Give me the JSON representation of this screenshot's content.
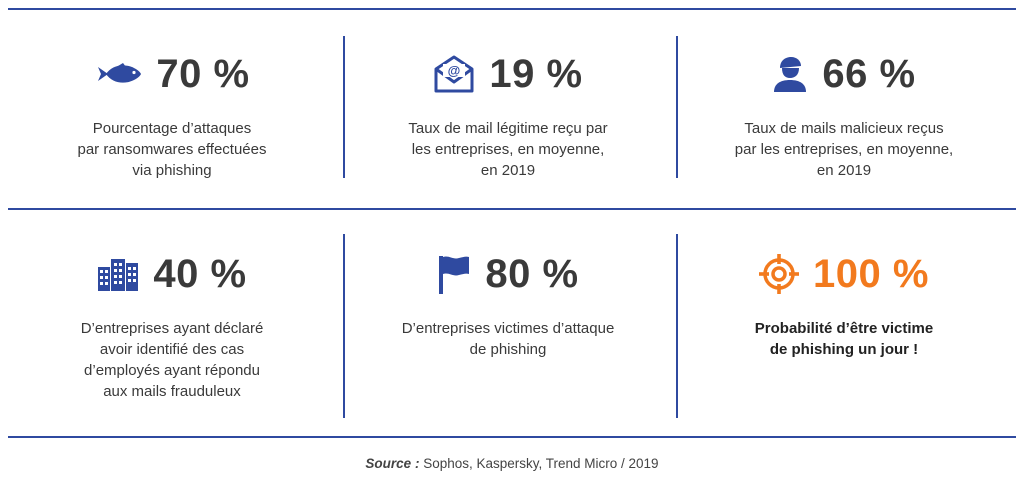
{
  "stats": [
    {
      "value": "70 %",
      "icon": "fish-icon",
      "description": "Pourcentage d’attaques\npar ransomwares effectuées\nvia phishing"
    },
    {
      "value": "19 %",
      "icon": "email-icon",
      "description": "Taux de mail légitime reçu par\nles entreprises, en moyenne,\nen 2019"
    },
    {
      "value": "66 %",
      "icon": "user-icon",
      "description": "Taux de mails malicieux reçus\npar les entreprises, en moyenne,\nen 2019"
    },
    {
      "value": "40 %",
      "icon": "buildings-icon",
      "description": "D’entreprises ayant déclaré\navoir identifié des cas\nd’employés ayant répondu\naux mails frauduleux"
    },
    {
      "value": "80 %",
      "icon": "flag-icon",
      "description": "D’entreprises victimes d’attaque\nde phishing"
    },
    {
      "value": "100 %",
      "icon": "target-icon",
      "description": "Probabilité d’être victime\nde phishing un jour !"
    }
  ],
  "source": {
    "label": "Source :",
    "text": " Sophos, Kaspersky, Trend Micro / 2019"
  },
  "colors": {
    "primary": "#2f4aa0",
    "accent": "#f27a1e",
    "text": "#3a3a3a"
  }
}
